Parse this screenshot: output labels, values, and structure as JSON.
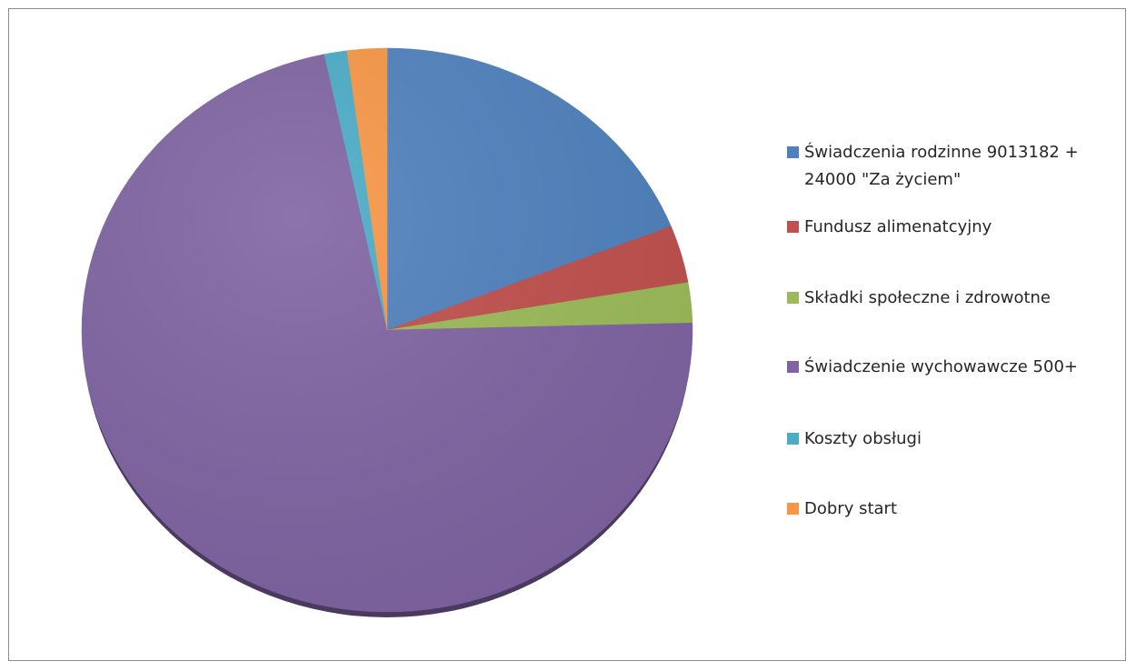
{
  "chart_data": {
    "type": "pie",
    "series": [
      {
        "label": "Świadczenia rodzinne 9013182 + 24000 \"Za życiem\"",
        "value": 19.0,
        "color": "#4F81BD"
      },
      {
        "label": "Fundusz alimenatcyjny",
        "value": 3.3,
        "color": "#C0504D"
      },
      {
        "label": "Składki społeczne i zdrowotne",
        "value": 2.3,
        "color": "#9BBB59"
      },
      {
        "label": "Świadczenie wychowawcze 500+",
        "value": 72.1,
        "color": "#8064A2"
      },
      {
        "label": "Koszty obsługi",
        "value": 1.2,
        "color": "#4BACC6"
      },
      {
        "label": "Dobry start",
        "value": 2.1,
        "color": "#F79646"
      }
    ],
    "legend_position": "right"
  }
}
